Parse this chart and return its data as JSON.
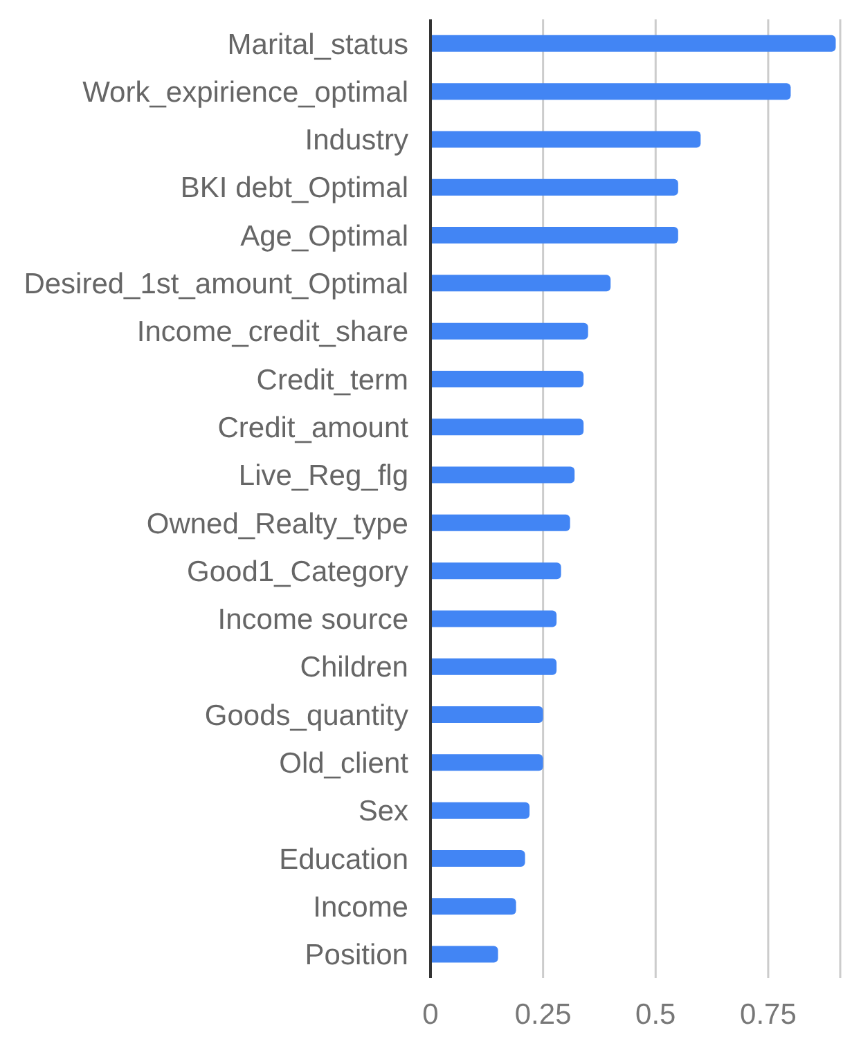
{
  "chart_data": {
    "type": "bar",
    "orientation": "horizontal",
    "categories": [
      "Marital_status",
      "Work_expirience_optimal",
      "Industry",
      "BKI debt_Optimal",
      "Age_Optimal",
      "Desired_1st_amount_Optimal",
      "Income_credit_share",
      "Credit_term",
      "Credit_amount",
      "Live_Reg_flg",
      "Owned_Realty_type",
      "Good1_Category",
      "Income source",
      "Children",
      "Goods_quantity",
      "Old_client",
      "Sex",
      "Education",
      "Income",
      "Position"
    ],
    "values": [
      0.9,
      0.8,
      0.6,
      0.55,
      0.55,
      0.4,
      0.35,
      0.34,
      0.34,
      0.32,
      0.31,
      0.29,
      0.28,
      0.28,
      0.25,
      0.25,
      0.22,
      0.21,
      0.19,
      0.15
    ],
    "color": "#4285f4",
    "xlim": [
      0,
      0.91
    ],
    "xticks": [
      0,
      0.25,
      0.5,
      0.75
    ],
    "grid": "x",
    "legend": false
  }
}
